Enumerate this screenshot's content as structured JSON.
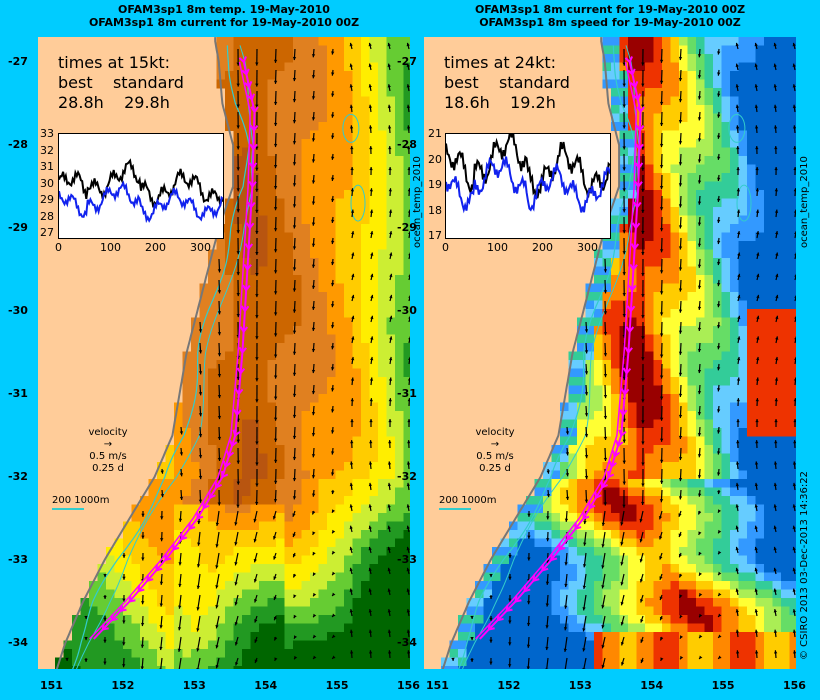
{
  "left": {
    "title1": "OFAM3sp1 8m temp. 19-May-2010",
    "title2": "OFAM3sp1 8m current for 19-May-2010 00Z",
    "times_head": "times at 15kt:",
    "best_label": "best",
    "standard_label": "standard",
    "best_value": "28.8h",
    "standard_value": "29.8h",
    "inset_yticks": [
      "33",
      "32",
      "31",
      "30",
      "29",
      "28",
      "27"
    ],
    "inset_xticks": [
      "0",
      "100",
      "200",
      "300"
    ]
  },
  "right": {
    "title1": "OFAM3sp1 8m current for 19-May-2010 00Z",
    "title2": "OFAM3sp1 8m speed for 19-May-2010 00Z",
    "times_head": "times at 24kt:",
    "best_label": "best",
    "standard_label": "standard",
    "best_value": "18.6h",
    "standard_value": "19.2h",
    "inset_yticks": [
      "21",
      "20",
      "19",
      "18",
      "17"
    ],
    "inset_xticks": [
      "0",
      "100",
      "200",
      "300"
    ]
  },
  "lat_ticks": [
    "-27",
    "-28",
    "-29",
    "-30",
    "-31",
    "-32",
    "-33",
    "-34"
  ],
  "lon_ticks": [
    "151",
    "152",
    "153",
    "154",
    "155",
    "156"
  ],
  "velocity_label": "velocity",
  "velocity_speed": "0.5 m/s",
  "velocity_time": "0.25 d",
  "scale_label": "200  1000m",
  "side_label": "ocean_temp_2010",
  "credit": "© CSIRO 2013   03-Dec-2013 14:36:22",
  "colors": {
    "background": "#00ccff",
    "land": "#ffcc99",
    "route_best": "#ff00ff",
    "contour": "#33cccc"
  }
}
